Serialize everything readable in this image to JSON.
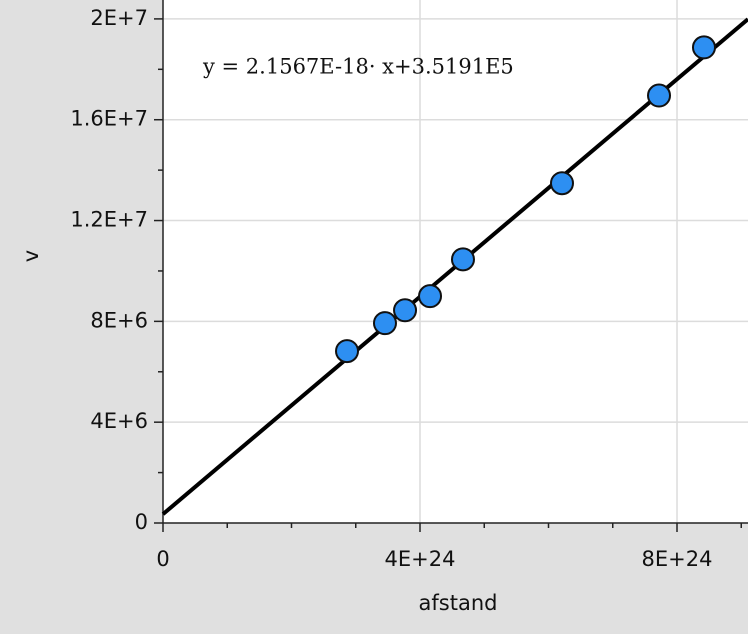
{
  "chart_data": {
    "type": "scatter",
    "x_label": "afstand",
    "y_label": "v",
    "series": [
      {
        "name": "v",
        "color": "#2d8ff2",
        "x": [
          2.864e+24,
          3.455e+24,
          3.767e+24,
          4.156e+24,
          4.669e+24,
          6.21e+24,
          7.72e+24,
          8.42e+24
        ],
        "values": [
          6820000.0,
          7930000.0,
          8440000.0,
          9000000.0,
          10460000.0,
          13480000.0,
          16960000.0,
          18870000.0
        ]
      }
    ],
    "fit": {
      "slope": 2.1567e-18,
      "intercept": 351910,
      "label": "y = 2.1567E-18· x+3.5191E5",
      "color": "#000000"
    },
    "xlim": [
      0,
      9.105e+24
    ],
    "ylim": [
      0,
      20750000.0
    ],
    "xticks": [
      0,
      {
        "value": 4e+24,
        "label": "4E+24"
      },
      {
        "value": 8e+24,
        "label": "8E+24"
      }
    ],
    "yticks": [
      0,
      {
        "value": 4000000.0,
        "label": "4E+6"
      },
      {
        "value": 8000000.0,
        "label": "8E+6"
      },
      {
        "value": 12000000.0,
        "label": "1.2E+7"
      },
      {
        "value": 16000000.0,
        "label": "1.6E+7"
      },
      {
        "value": 20000000.0,
        "label": "2E+7"
      }
    ],
    "xminorticks": [
      1e+24,
      2e+24,
      3e+24,
      5e+24,
      6e+24,
      7e+24,
      9e+24
    ],
    "yminorticks": [
      2000000.0,
      6000000.0,
      10000000.0,
      14000000.0,
      18000000.0
    ],
    "grid": true
  }
}
